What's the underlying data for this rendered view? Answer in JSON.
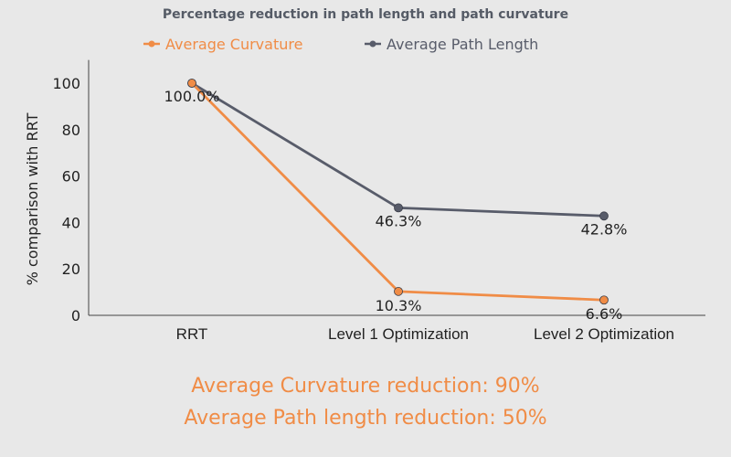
{
  "chart_data": {
    "type": "line",
    "title": "Percentage reduction in path length and path curvature",
    "xlabel": "",
    "ylabel": "% comparison with RRT",
    "categories": [
      "RRT",
      "Level 1 Optimization",
      "Level 2 Optimization"
    ],
    "ylim": [
      0,
      110
    ],
    "yticks": [
      0,
      20,
      40,
      60,
      80,
      100
    ],
    "grid": false,
    "legend_position": "top",
    "series": [
      {
        "name": "Average Curvature",
        "color": "#f08c46",
        "values": [
          100.0,
          10.3,
          6.6
        ],
        "labels": [
          "100.0%",
          "10.3%",
          "6.6%"
        ]
      },
      {
        "name": "Average Path Length",
        "color": "#585c6a",
        "values": [
          100.0,
          46.3,
          42.8
        ],
        "labels": [
          "100.0%",
          "46.3%",
          "42.8%"
        ]
      }
    ]
  },
  "notes": {
    "curvature_reduction": "Average Curvature reduction: 90%",
    "path_length_reduction": "Average Path length reduction: 50%"
  }
}
